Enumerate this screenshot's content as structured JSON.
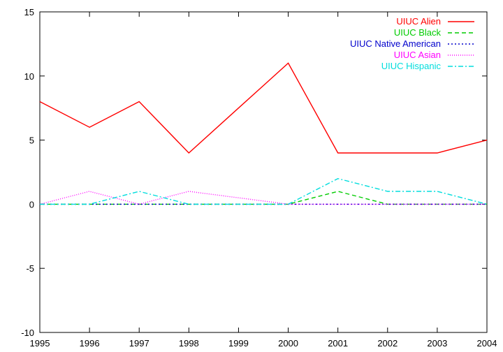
{
  "chart_data": {
    "type": "line",
    "x": [
      1995,
      1996,
      1997,
      1998,
      1999,
      2000,
      2001,
      2002,
      2003,
      2004
    ],
    "xlim": [
      1995,
      2004
    ],
    "ylim": [
      -10,
      15
    ],
    "xticks": [
      "1995",
      "1996",
      "1997",
      "1998",
      "1999",
      "2000",
      "2001",
      "2002",
      "2003",
      "2004"
    ],
    "yticks": [
      "15",
      "10",
      "5",
      "0",
      "-5",
      "-10"
    ],
    "ytick_values": [
      15,
      10,
      5,
      0,
      -5,
      -10
    ],
    "grid": false,
    "legend_position": "top-right",
    "series": [
      {
        "name": "UIUC Alien",
        "color": "#ff0000",
        "dash": "solid",
        "values": [
          8,
          6,
          8,
          4,
          7.5,
          11,
          4,
          4,
          4,
          5
        ]
      },
      {
        "name": "UIUC Black",
        "color": "#00cc00",
        "dash": "dashed",
        "values": [
          0,
          0,
          0,
          0,
          0,
          0,
          1,
          0,
          0,
          0
        ]
      },
      {
        "name": "UIUC Native American",
        "color": "#0000cc",
        "dash": "dotted",
        "values": [
          0,
          0,
          0,
          0,
          0,
          0,
          0,
          0,
          0,
          0
        ]
      },
      {
        "name": "UIUC Asian",
        "color": "#ff00ff",
        "dash": "fine-dotted",
        "values": [
          0,
          1,
          0,
          1,
          0.5,
          0,
          0,
          0,
          0,
          0
        ]
      },
      {
        "name": "UIUC Hispanic",
        "color": "#00dddd",
        "dash": "dash-dot",
        "values": [
          0,
          0,
          1,
          0,
          0,
          0,
          2,
          1,
          1,
          0
        ]
      }
    ]
  }
}
